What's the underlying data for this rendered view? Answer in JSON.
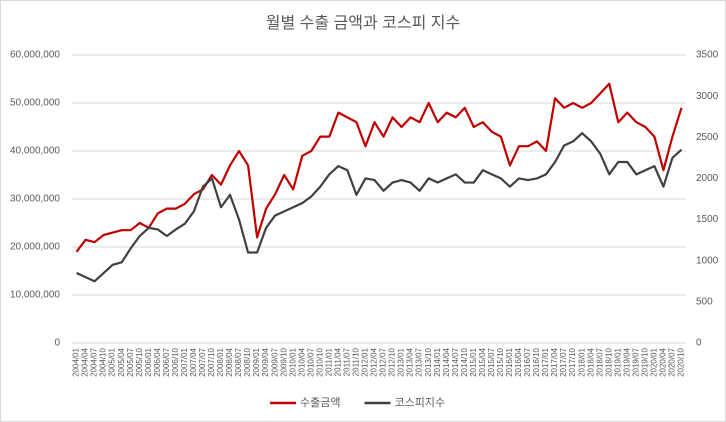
{
  "chart_data": {
    "type": "line",
    "title": "월별 수출 금액과 코스피 지수",
    "categories": [
      "2004/01",
      "2004/04",
      "2004/07",
      "2004/10",
      "2005/01",
      "2005/04",
      "2005/07",
      "2005/10",
      "2006/01",
      "2006/04",
      "2006/07",
      "2006/10",
      "2007/01",
      "2007/04",
      "2007/07",
      "2007/10",
      "2008/01",
      "2008/04",
      "2008/07",
      "2008/10",
      "2009/01",
      "2009/04",
      "2009/07",
      "2009/10",
      "2010/01",
      "2010/04",
      "2010/07",
      "2010/10",
      "2011/01",
      "2011/04",
      "2011/07",
      "2011/10",
      "2012/01",
      "2012/04",
      "2012/07",
      "2012/10",
      "2013/01",
      "2013/04",
      "2013/07",
      "2013/10",
      "2014/01",
      "2014/04",
      "2014/07",
      "2014/10",
      "2015/01",
      "2015/04",
      "2015/07",
      "2015/10",
      "2016/01",
      "2016/04",
      "2016/07",
      "2016/10",
      "2017/01",
      "2017/04",
      "2017/07",
      "2017/10",
      "2018/01",
      "2018/04",
      "2018/07",
      "2018/10",
      "2019/01",
      "2019/04",
      "2019/07",
      "2019/10",
      "2020/01",
      "2020/04",
      "2020/07",
      "2020/10"
    ],
    "series": [
      {
        "name": "수출금액",
        "color": "#c00000",
        "axis": "y",
        "values": [
          19000000,
          21500000,
          21000000,
          22500000,
          23000000,
          23500000,
          23500000,
          25000000,
          24000000,
          27000000,
          28000000,
          28000000,
          29000000,
          31000000,
          32000000,
          35000000,
          33000000,
          37000000,
          40000000,
          37000000,
          22000000,
          28000000,
          31000000,
          35000000,
          32000000,
          39000000,
          40000000,
          43000000,
          43000000,
          48000000,
          47000000,
          46000000,
          41000000,
          46000000,
          43000000,
          47000000,
          45000000,
          47000000,
          46000000,
          50000000,
          46000000,
          48000000,
          47000000,
          49000000,
          45000000,
          46000000,
          44000000,
          43000000,
          37000000,
          41000000,
          41000000,
          42000000,
          40000000,
          51000000,
          49000000,
          50000000,
          49000000,
          50000000,
          52000000,
          54000000,
          46000000,
          48000000,
          46000000,
          45000000,
          43000000,
          36000000,
          43000000,
          49000000
        ]
      },
      {
        "name": "코스피지수",
        "color": "#404040",
        "axis": "y2",
        "values": [
          850,
          800,
          750,
          850,
          950,
          980,
          1150,
          1300,
          1400,
          1380,
          1300,
          1380,
          1450,
          1600,
          1900,
          2000,
          1650,
          1800,
          1500,
          1100,
          1100,
          1400,
          1550,
          1600,
          1650,
          1700,
          1780,
          1900,
          2050,
          2150,
          2100,
          1800,
          2000,
          1980,
          1850,
          1950,
          1980,
          1950,
          1850,
          2000,
          1950,
          2000,
          2050,
          1950,
          1950,
          2100,
          2050,
          2000,
          1900,
          2000,
          1980,
          2000,
          2050,
          2200,
          2400,
          2450,
          2550,
          2450,
          2300,
          2050,
          2200,
          2200,
          2050,
          2100,
          2150,
          1900,
          2250,
          2350
        ]
      }
    ],
    "ylim": [
      0,
      60000000
    ],
    "yticks": [
      0,
      {
        "value": 10000000,
        "label": "10,000,000"
      },
      {
        "value": 20000000,
        "label": "20,000,000"
      },
      {
        "value": 30000000,
        "label": "30,000,000"
      },
      {
        "value": 40000000,
        "label": "40,000,000"
      },
      {
        "value": 50000000,
        "label": "50,000,000"
      },
      {
        "value": 60000000,
        "label": "60,000,000"
      }
    ],
    "y2lim": [
      0,
      3500
    ],
    "y2ticks": [
      0,
      500,
      1000,
      1500,
      2000,
      2500,
      3000,
      3500
    ],
    "grid": true,
    "legend": "bottom"
  }
}
